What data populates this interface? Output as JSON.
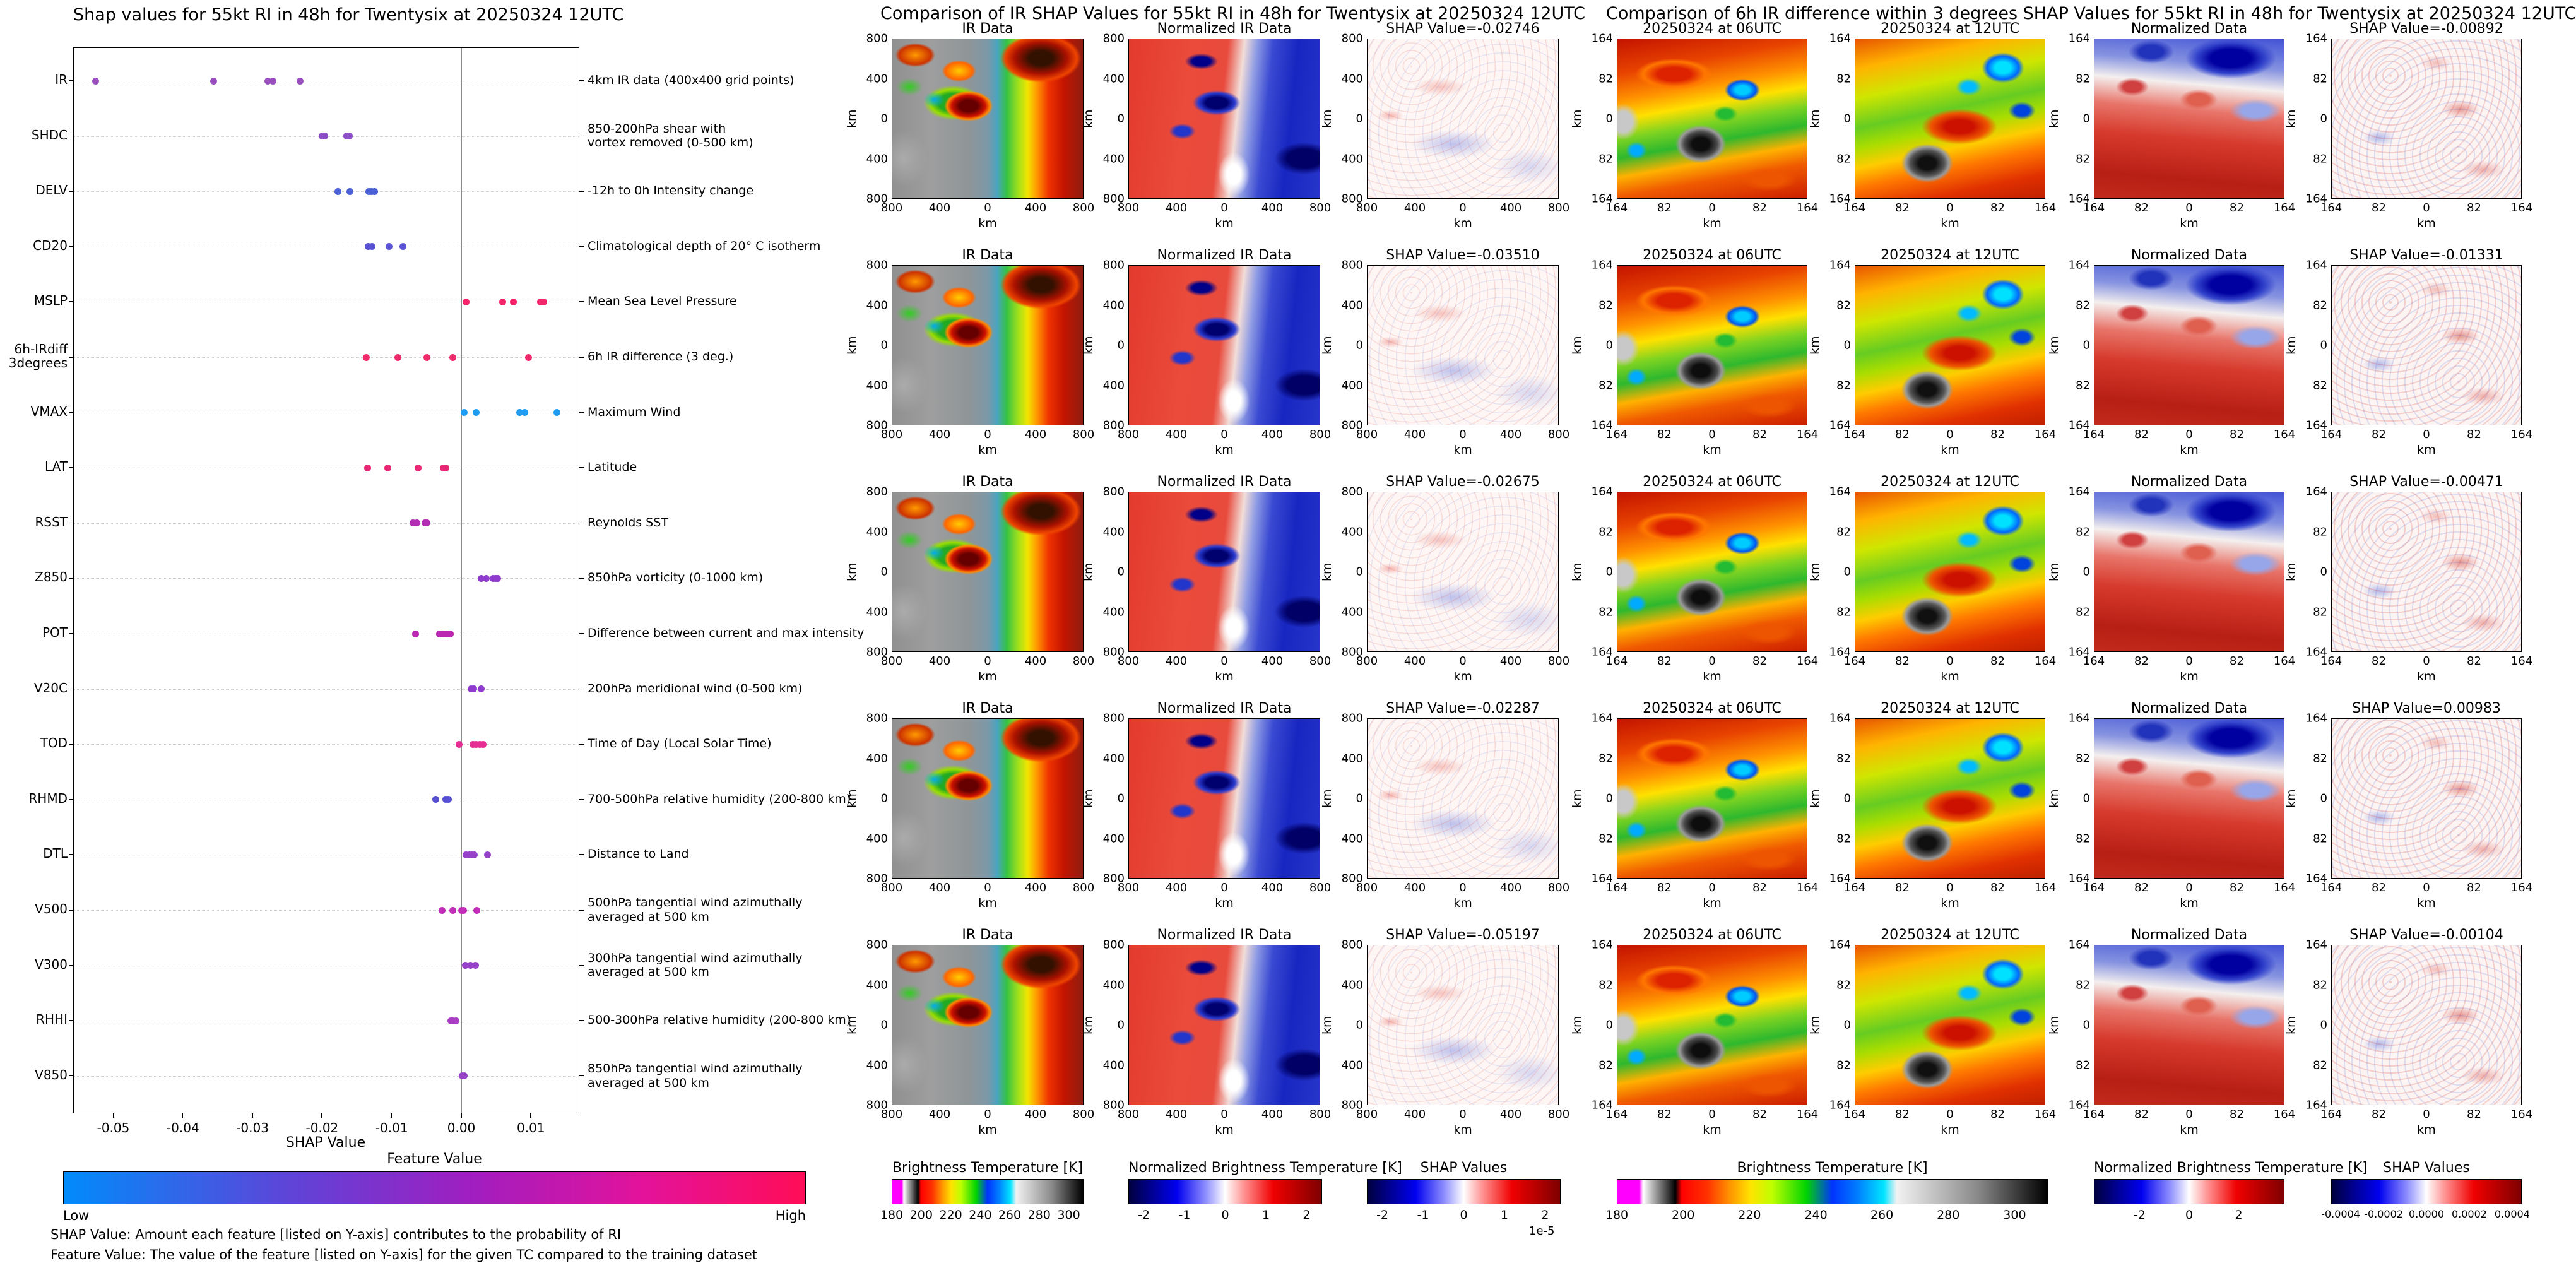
{
  "left_panel": {
    "title": "Shap values for 55kt RI in 48h for Twentysix at 20250324 12UTC",
    "xlabel": "SHAP Value",
    "x_ticks": [
      {
        "value": -0.05,
        "label": "-0.05"
      },
      {
        "value": -0.04,
        "label": "-0.04"
      },
      {
        "value": -0.03,
        "label": "-0.03"
      },
      {
        "value": -0.02,
        "label": "-0.02"
      },
      {
        "value": -0.01,
        "label": "-0.01"
      },
      {
        "value": 0.0,
        "label": "0.00"
      },
      {
        "value": 0.01,
        "label": "0.01"
      }
    ],
    "colorbar": {
      "title": "Feature Value",
      "low_label": "Low",
      "high_label": "High",
      "gradient": [
        "#008bfb",
        "#5d45d8",
        "#a01ec0",
        "#e3129b",
        "#ff0d57"
      ]
    },
    "footnotes": [
      "SHAP Value: Amount each feature [listed on Y-axis] contributes to the probability of RI",
      "Feature Value: The value of the feature [listed on Y-axis] for the given TC compared to the training dataset"
    ]
  },
  "middle_panel": {
    "title": "Comparison of IR SHAP Values for 55kt RI in 48h for Twentysix at 20250324 12UTC",
    "axis_label": "km",
    "axis_ticks": [
      "800",
      "400",
      "0",
      "400",
      "800"
    ],
    "rows": [
      {
        "titles": [
          "IR Data",
          "Normalized IR Data",
          "SHAP Value=-0.02746"
        ]
      },
      {
        "titles": [
          "IR Data",
          "Normalized IR Data",
          "SHAP Value=-0.03510"
        ]
      },
      {
        "titles": [
          "IR Data",
          "Normalized IR Data",
          "SHAP Value=-0.02675"
        ]
      },
      {
        "titles": [
          "IR Data",
          "Normalized IR Data",
          "SHAP Value=-0.02287"
        ]
      },
      {
        "titles": [
          "IR Data",
          "Normalized IR Data",
          "SHAP Value=-0.05197"
        ]
      }
    ],
    "colorbars": [
      {
        "title": "Brightness Temperature [K]",
        "ticks": [
          "180",
          "200",
          "220",
          "240",
          "260",
          "280",
          "300"
        ],
        "type": "bt"
      },
      {
        "title": "Normalized Brightness Temperature [K]",
        "ticks": [
          "-2",
          "-1",
          "0",
          "1",
          "2"
        ],
        "type": "seismic"
      },
      {
        "title": "SHAP Values",
        "ticks": [
          "-2",
          "-1",
          "0",
          "1",
          "2"
        ],
        "scale_note": "1e-5",
        "type": "seismic"
      }
    ]
  },
  "right_panel": {
    "title": "Comparison of 6h IR difference within 3 degrees SHAP Values for 55kt RI in 48h for Twentysix at 20250324 12UTC",
    "axis_label": "km",
    "axis_ticks": [
      "164",
      "82",
      "0",
      "82",
      "164"
    ],
    "rows": [
      {
        "titles": [
          "20250324 at 06UTC",
          "20250324 at 12UTC",
          "Normalized Data",
          "SHAP Value=-0.00892"
        ]
      },
      {
        "titles": [
          "20250324 at 06UTC",
          "20250324 at 12UTC",
          "Normalized Data",
          "SHAP Value=-0.01331"
        ]
      },
      {
        "titles": [
          "20250324 at 06UTC",
          "20250324 at 12UTC",
          "Normalized Data",
          "SHAP Value=-0.00471"
        ]
      },
      {
        "titles": [
          "20250324 at 06UTC",
          "20250324 at 12UTC",
          "Normalized Data",
          "SHAP Value=0.00983"
        ]
      },
      {
        "titles": [
          "20250324 at 06UTC",
          "20250324 at 12UTC",
          "Normalized Data",
          "SHAP Value=-0.00104"
        ]
      }
    ],
    "colorbars": [
      {
        "title": "Brightness Temperature [K]",
        "ticks": [
          "180",
          "200",
          "220",
          "240",
          "260",
          "280",
          "300"
        ],
        "type": "bt"
      },
      {
        "title": "Normalized Brightness Temperature [K]",
        "ticks": [
          "-2",
          "0",
          "2"
        ],
        "type": "seismic"
      },
      {
        "title": "SHAP Values",
        "ticks": [
          "-0.0004",
          "-0.0002",
          "0.0000",
          "0.0002",
          "0.0004"
        ],
        "type": "seismic"
      }
    ]
  },
  "chart_data": [
    {
      "type": "scatter",
      "subtype": "shap-beeswarm",
      "title": "Shap values for 55kt RI in 48h for Twentysix at 20250324 12UTC",
      "xlabel": "SHAP Value",
      "xlim": [
        -0.0556,
        0.0169
      ],
      "grid": "dotted-horizontal",
      "features": [
        {
          "code": "IR",
          "description": "4km IR data (400x400 grid points)",
          "color": "#9a4fc0",
          "shap_values": [
            -0.0525,
            -0.0356,
            -0.0278,
            -0.0271,
            -0.0232
          ]
        },
        {
          "code": "SHDC",
          "description": "850-200hPa shear with\nvortex removed (0-500 km)",
          "color": "#8c4ec5",
          "shap_values": [
            -0.02,
            -0.0196,
            -0.0165,
            -0.0161
          ]
        },
        {
          "code": "DELV",
          "description": "-12h to 0h Intensity change",
          "color": "#4b5fd6",
          "shap_values": [
            -0.0177,
            -0.016,
            -0.0133,
            -0.0129,
            -0.0125
          ]
        },
        {
          "code": "CD20",
          "description": "Climatological depth of 20° C isotherm",
          "color": "#5a52d4",
          "shap_values": [
            -0.0134,
            -0.0128,
            -0.0104,
            -0.0084
          ]
        },
        {
          "code": "MSLP",
          "description": "Mean Sea Level Pressure",
          "color": "#f5256b",
          "shap_values": [
            0.0007,
            0.0059,
            0.0075,
            0.0114,
            0.0118
          ]
        },
        {
          "code": "6h-IRdiff\n3degrees",
          "description": "6h IR difference (3 deg.)",
          "color": "#ef2a6a",
          "shap_values": [
            -0.0136,
            -0.0091,
            -0.0049,
            -0.0012,
            0.0097
          ]
        },
        {
          "code": "VMAX",
          "description": "Maximum Wind",
          "color": "#1e9bf0",
          "shap_values": [
            0.0004,
            0.0021,
            0.0084,
            0.0091,
            0.0137
          ]
        },
        {
          "code": "LAT",
          "description": "Latitude",
          "color": "#e82775",
          "shap_values": [
            -0.0135,
            -0.0106,
            -0.0062,
            -0.0026,
            -0.0022
          ]
        },
        {
          "code": "RSST",
          "description": "Reynolds SST",
          "color": "#b32cb4",
          "shap_values": [
            -0.0069,
            -0.0064,
            -0.0052,
            -0.0049
          ]
        },
        {
          "code": "Z850",
          "description": "850hPa vorticity (0-1000 km)",
          "color": "#8f3bcd",
          "shap_values": [
            0.0029,
            0.0036,
            0.0046,
            0.0049,
            0.0052
          ]
        },
        {
          "code": "POT",
          "description": "Difference between current and max intensity",
          "color": "#bb27b0",
          "shap_values": [
            -0.0066,
            -0.0031,
            -0.0026,
            -0.0021,
            -0.0016
          ]
        },
        {
          "code": "V20C",
          "description": "200hPa meridional wind (0-500 km)",
          "color": "#8f3bcd",
          "shap_values": [
            0.0014,
            0.0018,
            0.0029
          ]
        },
        {
          "code": "TOD",
          "description": "Time of Day (Local Solar Time)",
          "color": "#e62d93",
          "shap_values": [
            -0.0003,
            0.0017,
            0.0021,
            0.0027,
            0.0031
          ]
        },
        {
          "code": "RHMD",
          "description": "700-500hPa relative humidity (200-800 km)",
          "color": "#564fd2",
          "shap_values": [
            -0.0037,
            -0.0022,
            -0.0019
          ]
        },
        {
          "code": "DTL",
          "description": "Distance to Land",
          "color": "#9742cb",
          "shap_values": [
            0.0007,
            0.0011,
            0.0015,
            0.0019,
            0.0038
          ]
        },
        {
          "code": "V500",
          "description": "500hPa tangential wind azimuthally\naveraged at 500 km",
          "color": "#c12db6",
          "shap_values": [
            -0.0028,
            -0.0012,
            0.0,
            0.0003,
            0.0022
          ]
        },
        {
          "code": "V300",
          "description": "300hPa tangential wind azimuthally\naveraged at 500 km",
          "color": "#9742cb",
          "shap_values": [
            0.0006,
            0.0013,
            0.002
          ]
        },
        {
          "code": "RHHI",
          "description": "500-300hPa relative humidity (200-800 km)",
          "color": "#a93ec3",
          "shap_values": [
            -0.0015,
            -0.0012,
            -0.0008
          ]
        },
        {
          "code": "V850",
          "description": "850hPa tangential wind azimuthally\naveraged at 500 km",
          "color": "#9742cb",
          "shap_values": [
            0.0001,
            0.0004
          ]
        }
      ]
    },
    {
      "type": "heatmap",
      "title": "Comparison of IR SHAP Values for 55kt RI in 48h for Twentysix at 20250324 12UTC",
      "columns": [
        "IR Data",
        "Normalized IR Data",
        "SHAP Value"
      ],
      "row_shap_values": [
        -0.02746,
        -0.0351,
        -0.02675,
        -0.02287,
        -0.05197
      ],
      "axis_range_km": [
        -800,
        800
      ],
      "colorbar_ranges": {
        "brightness_temperature_K": [
          180,
          300
        ],
        "normalized": [
          -2,
          2
        ],
        "shap_values": [
          -2e-05,
          2e-05
        ]
      }
    },
    {
      "type": "heatmap",
      "title": "Comparison of 6h IR difference within 3 degrees SHAP Values for 55kt RI in 48h for Twentysix at 20250324 12UTC",
      "columns": [
        "20250324 at 06UTC",
        "20250324 at 12UTC",
        "Normalized Data",
        "SHAP Value"
      ],
      "row_shap_values": [
        -0.00892,
        -0.01331,
        -0.00471,
        0.00983,
        -0.00104
      ],
      "axis_range_km": [
        -164,
        164
      ],
      "colorbar_ranges": {
        "brightness_temperature_K": [
          180,
          300
        ],
        "normalized": [
          -2,
          2
        ],
        "shap_values": [
          -0.0004,
          0.0004
        ]
      }
    }
  ]
}
